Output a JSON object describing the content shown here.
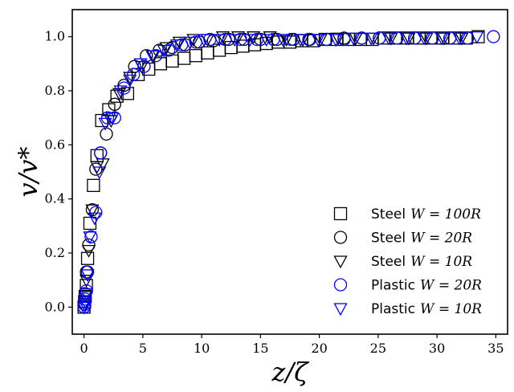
{
  "chart_data": {
    "type": "scatter",
    "xlabel": "z/ζ",
    "ylabel": "v/v*",
    "xlim": [
      -1,
      36
    ],
    "ylim": [
      -0.1,
      1.1
    ],
    "xticks": [
      "0",
      "5",
      "10",
      "15",
      "20",
      "25",
      "30",
      "35"
    ],
    "yticks": [
      "0.0",
      "0.2",
      "0.4",
      "0.6",
      "0.8",
      "1.0"
    ],
    "grid": false,
    "legend_position": "bottom-right",
    "series": [
      {
        "name": "Steel W = 100R",
        "legend_prefix": "Steel",
        "legend_math": "W = 100R",
        "marker": "square",
        "color": "#000000",
        "x": [
          0.0,
          0.05,
          0.1,
          0.2,
          0.3,
          0.5,
          0.8,
          1.1,
          1.5,
          2.1,
          2.8,
          3.7,
          4.6,
          5.5,
          6.5,
          7.5,
          8.5,
          9.5,
          10.5,
          11.5,
          12.5,
          13.5,
          14.5,
          15.5,
          16.5,
          17.5,
          18.5,
          19.5,
          20.5,
          21.5,
          22.5,
          23.5,
          24.5,
          25.5,
          26.5,
          27.5,
          28.5,
          29.5,
          30.5,
          31.5,
          32.5,
          33.5
        ],
        "y": [
          0.0,
          0.02,
          0.04,
          0.08,
          0.18,
          0.31,
          0.45,
          0.56,
          0.69,
          0.73,
          0.78,
          0.79,
          0.86,
          0.88,
          0.9,
          0.91,
          0.92,
          0.93,
          0.94,
          0.95,
          0.96,
          0.965,
          0.97,
          0.975,
          0.98,
          0.98,
          0.985,
          0.985,
          0.99,
          0.99,
          0.99,
          0.99,
          0.99,
          0.995,
          0.995,
          0.995,
          0.995,
          0.995,
          0.995,
          0.995,
          0.995,
          1.0
        ]
      },
      {
        "name": "Steel W = 20R",
        "legend_prefix": "Steel",
        "legend_math": "W = 20R",
        "marker": "circle",
        "color": "#000000",
        "x": [
          0.0,
          0.1,
          0.2,
          0.4,
          0.7,
          1.0,
          1.4,
          1.9,
          2.6,
          3.4,
          4.3,
          5.3,
          6.4,
          7.5,
          8.6,
          9.8,
          11,
          12.3,
          13.6,
          15,
          16.4,
          17.8,
          19.2,
          20.6,
          22.1,
          23.6,
          25.1,
          26.6,
          28.1,
          29.6,
          31.1,
          32.6
        ],
        "y": [
          0.0,
          0.05,
          0.13,
          0.23,
          0.36,
          0.51,
          0.57,
          0.64,
          0.75,
          0.82,
          0.89,
          0.93,
          0.95,
          0.96,
          0.97,
          0.98,
          0.985,
          0.99,
          0.99,
          0.99,
          0.99,
          0.99,
          0.99,
          0.99,
          0.995,
          0.995,
          0.995,
          0.995,
          0.995,
          0.995,
          0.995,
          0.995
        ]
      },
      {
        "name": "Steel W = 10R",
        "legend_prefix": "Steel",
        "legend_math": "W = 10R",
        "marker": "triangle-down",
        "color": "#000000",
        "x": [
          0.0,
          0.1,
          0.2,
          0.4,
          0.7,
          1.1,
          1.6,
          2.3,
          3.0,
          3.9,
          4.9,
          5.9,
          7.0,
          8.1,
          9.3,
          10.5,
          11.8,
          13.1,
          14.4,
          15.8,
          17.2,
          18.6,
          20.1,
          21.6,
          23.1,
          24.6,
          26.1,
          27.6,
          29.1,
          30.6,
          32.1
        ],
        "y": [
          0.0,
          0.04,
          0.1,
          0.21,
          0.36,
          0.52,
          0.53,
          0.69,
          0.79,
          0.85,
          0.89,
          0.93,
          0.96,
          0.98,
          0.99,
          0.99,
          1.0,
          1.0,
          1.0,
          1.0,
          0.99,
          0.99,
          0.99,
          0.995,
          0.995,
          0.995,
          0.995,
          0.995,
          0.995,
          0.995,
          0.995
        ]
      },
      {
        "name": "Plastic W = 20R",
        "legend_prefix": "Plastic",
        "legend_math": "W = 20R",
        "marker": "circle",
        "color": "#0000ff",
        "x": [
          0.0,
          0.05,
          0.1,
          0.2,
          0.3,
          0.6,
          1.0,
          1.4,
          2.0,
          2.6,
          3.4,
          4.2,
          5.1,
          6.1,
          7.2,
          8.3,
          9.5,
          10.7,
          12,
          13.3,
          14.7,
          16.1,
          17.6,
          19.1,
          20.6,
          22.1,
          23.6,
          25.1,
          26.6,
          28.1,
          29.6,
          31.1,
          32.6,
          34.8
        ],
        "y": [
          0.0,
          0.01,
          0.03,
          0.06,
          0.13,
          0.26,
          0.35,
          0.57,
          0.7,
          0.7,
          0.81,
          0.86,
          0.89,
          0.93,
          0.95,
          0.97,
          0.98,
          0.99,
          0.99,
          0.99,
          0.99,
          0.99,
          0.99,
          0.99,
          0.99,
          0.99,
          0.995,
          0.995,
          0.995,
          0.995,
          0.995,
          0.995,
          0.995,
          1.0
        ]
      },
      {
        "name": "Plastic W = 10R",
        "legend_prefix": "Plastic",
        "legend_math": "W = 10R",
        "marker": "triangle-down",
        "color": "#0000ff",
        "x": [
          0.0,
          0.05,
          0.1,
          0.2,
          0.3,
          0.5,
          0.9,
          1.3,
          1.8,
          2.4,
          3.1,
          3.9,
          4.8,
          5.8,
          6.8,
          7.9,
          9.0,
          10.2,
          11.5,
          12.8,
          14.1,
          15.5,
          16.9,
          18.4,
          19.9,
          21.4,
          22.9,
          24.4,
          25.9,
          27.4,
          28.9,
          30.4,
          31.9,
          33.4
        ],
        "y": [
          0.0,
          0.01,
          0.02,
          0.05,
          0.12,
          0.26,
          0.33,
          0.5,
          0.68,
          0.7,
          0.8,
          0.84,
          0.9,
          0.93,
          0.95,
          0.97,
          0.98,
          0.99,
          0.99,
          0.99,
          0.99,
          0.99,
          0.99,
          0.99,
          0.99,
          0.99,
          0.995,
          0.995,
          0.995,
          0.995,
          0.995,
          0.995,
          0.995,
          1.0
        ]
      }
    ]
  }
}
